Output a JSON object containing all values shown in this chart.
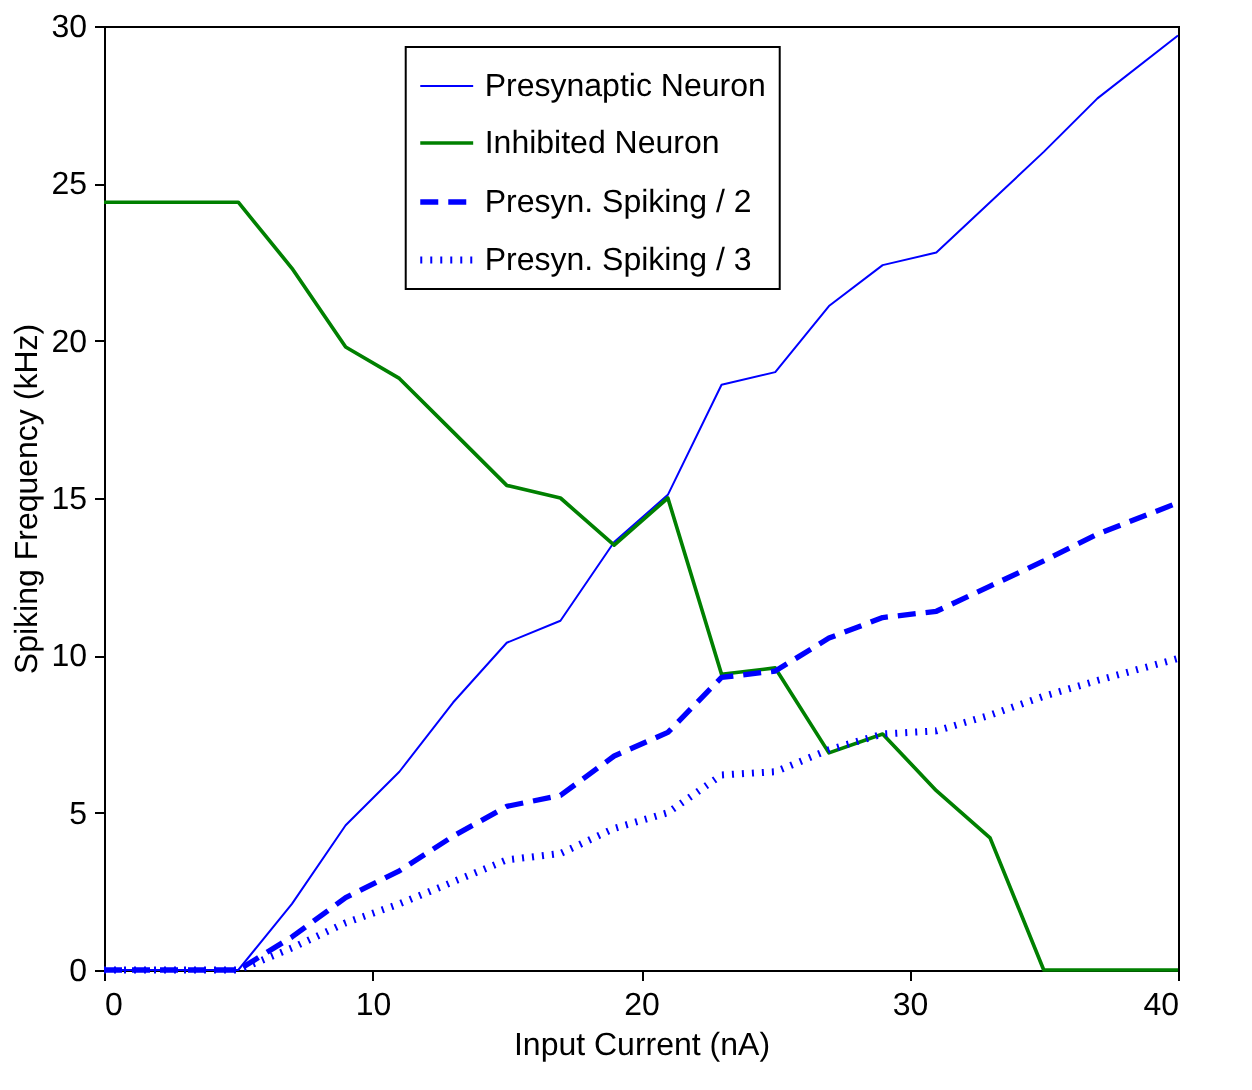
{
  "chart_data": {
    "type": "line",
    "xlabel": "Input Current (nA)",
    "ylabel": "Spiking Frequency (kHz)",
    "x": [
      0,
      5,
      7,
      9,
      11,
      13,
      15,
      17,
      19,
      21,
      23,
      25,
      27,
      29,
      31,
      33,
      35,
      37,
      40
    ],
    "series": [
      {
        "name": "Presynaptic Neuron",
        "color": "#0000ff",
        "line_style": "solid",
        "values": [
          0,
          0,
          2.1,
          4.6,
          6.3,
          8.5,
          10.4,
          11.1,
          13.6,
          15.1,
          18.6,
          19.0,
          21.1,
          22.4,
          22.8,
          24.4,
          26.0,
          27.7,
          29.7
        ]
      },
      {
        "name": "Inhibited Neuron",
        "color": "#008000",
        "line_style": "solid",
        "values": [
          24.4,
          24.4,
          22.3,
          19.8,
          18.8,
          17.1,
          15.4,
          15.0,
          13.5,
          15.0,
          9.4,
          9.6,
          6.9,
          7.5,
          5.7,
          4.2,
          0,
          0,
          0
        ]
      },
      {
        "name": "Presyn. Spiking / 2",
        "color": "#0000ff",
        "line_style": "dashed",
        "values": [
          0,
          0,
          1.05,
          2.3,
          3.15,
          4.25,
          5.2,
          5.55,
          6.8,
          7.55,
          9.3,
          9.5,
          10.55,
          11.2,
          11.4,
          12.2,
          13.0,
          13.85,
          14.85
        ]
      },
      {
        "name": "Presyn. Spiking / 3",
        "color": "#0000ff",
        "line_style": "dotted",
        "values": [
          0,
          0,
          0.7,
          1.5,
          2.1,
          2.8,
          3.5,
          3.7,
          4.5,
          5.0,
          6.2,
          6.3,
          7.0,
          7.5,
          7.6,
          8.1,
          8.7,
          9.2,
          9.9
        ]
      }
    ],
    "xlim": [
      0,
      40
    ],
    "xticks": [
      0,
      10,
      20,
      30,
      40
    ],
    "ylim": [
      0,
      30
    ],
    "yticks": [
      0,
      5,
      10,
      15,
      20,
      25,
      30
    ],
    "grid": false,
    "legend": "top",
    "marker": "none"
  }
}
